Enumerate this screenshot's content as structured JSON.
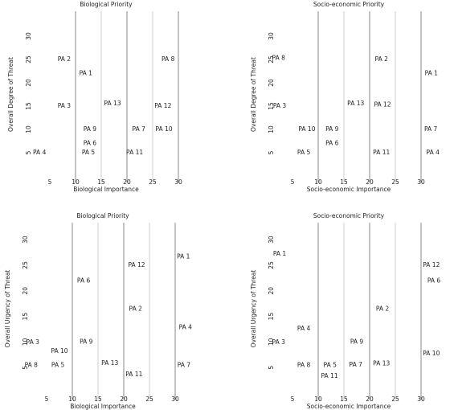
{
  "chart_data": [
    {
      "type": "scatter",
      "title": "Biological Priority",
      "x_label": "Biological Importance",
      "y_label": "Overall Degree of Threat",
      "xlim": [
        0,
        35
      ],
      "ylim": [
        0,
        35
      ],
      "xticks": [
        5,
        10,
        15,
        20,
        25,
        30
      ],
      "yticks": [
        5,
        10,
        15,
        20,
        25,
        30
      ],
      "major_lines": [
        10,
        20,
        30
      ],
      "minor_lines": [
        15,
        25
      ],
      "labels": [
        "PA 2",
        "PA 1",
        "PA 8",
        "PA 3",
        "PA 13",
        "PA 12",
        "PA 9",
        "PA 7",
        "PA 10",
        "PA 6",
        "PA 4",
        "PA 5",
        "PA 11"
      ],
      "x": [
        7.8,
        12,
        28,
        7.8,
        17.2,
        27,
        12.8,
        22.3,
        27.2,
        12.8,
        3,
        12.5,
        21.5
      ],
      "y": [
        25,
        22,
        25,
        15,
        15.5,
        15,
        10,
        10,
        10,
        7,
        5,
        5,
        5
      ]
    },
    {
      "type": "scatter",
      "title": "Socio-economic Priority",
      "x_label": "Socio-economic Importance",
      "y_label": "Overall Degree of Threat",
      "xlim": [
        0,
        35
      ],
      "ylim": [
        0,
        35
      ],
      "xticks": [
        5,
        10,
        15,
        20,
        25,
        30
      ],
      "yticks": [
        5,
        10,
        15,
        20,
        25,
        30
      ],
      "major_lines": [
        10,
        20,
        30
      ],
      "minor_lines": [
        15,
        25
      ],
      "labels": [
        "PA 8",
        "PA 2",
        "PA 1",
        "PA 3",
        "PA 13",
        "PA 12",
        "PA 10",
        "PA 9",
        "PA 7",
        "PA 6",
        "PA 5",
        "PA 11",
        "PA 4"
      ],
      "x": [
        2.3,
        22.3,
        32,
        2.5,
        17.3,
        22.5,
        7.8,
        12.7,
        31.9,
        12.7,
        7.2,
        22.3,
        32.3
      ],
      "y": [
        25.3,
        25,
        22,
        15,
        15.5,
        15.3,
        10,
        10,
        10,
        7,
        5,
        5,
        5
      ]
    },
    {
      "type": "scatter",
      "title": "Biological Priority",
      "x_label": "Biological Importance",
      "y_label": "Overall Urgency of Threat",
      "xlim": [
        0,
        35
      ],
      "ylim": [
        0,
        33
      ],
      "xticks": [
        5,
        10,
        15,
        20,
        25,
        30
      ],
      "yticks": [
        5,
        10,
        15,
        20,
        25,
        30
      ],
      "major_lines": [
        10,
        20,
        30
      ],
      "minor_lines": [
        15,
        25
      ],
      "labels": [
        "PA 1",
        "PA 12",
        "PA 6",
        "PA 2",
        "PA 4",
        "PA 9",
        "PA 3",
        "PA 10",
        "PA 8",
        "PA 5",
        "PA 13",
        "PA 11",
        "PA 7"
      ],
      "x": [
        31.6,
        22.5,
        12.2,
        22.3,
        32,
        12.7,
        2.3,
        7.5,
        2,
        7.2,
        17.3,
        22,
        31.7
      ],
      "y": [
        26.6,
        25,
        21.9,
        16.4,
        12.8,
        10,
        9.9,
        8.2,
        5.4,
        5.4,
        5.8,
        3.6,
        5.4
      ]
    },
    {
      "type": "scatter",
      "title": "Socio-economic Priority",
      "x_label": "Socio-economic Importance",
      "y_label": "Overall Urgency of Threat",
      "xlim": [
        0,
        35
      ],
      "ylim": [
        0,
        33
      ],
      "xticks": [
        5,
        10,
        15,
        20,
        25,
        30
      ],
      "yticks": [
        5,
        10,
        15,
        20,
        25,
        30
      ],
      "major_lines": [
        10,
        20,
        30
      ],
      "minor_lines": [
        15,
        25
      ],
      "labels": [
        "PA 1",
        "PA 12",
        "PA 6",
        "PA 2",
        "PA 4",
        "PA 3",
        "PA 9",
        "PA 10",
        "PA 8",
        "PA 5",
        "PA 11",
        "PA 7",
        "PA 13"
      ],
      "x": [
        2.5,
        32,
        32.5,
        22.5,
        7.2,
        2.3,
        17.5,
        32,
        7.2,
        12.3,
        12.2,
        17.3,
        22.3
      ],
      "y": [
        27.2,
        25,
        21.9,
        16.4,
        12.6,
        9.9,
        10,
        7.7,
        5.4,
        5.4,
        3.3,
        5.5,
        5.7
      ]
    }
  ]
}
